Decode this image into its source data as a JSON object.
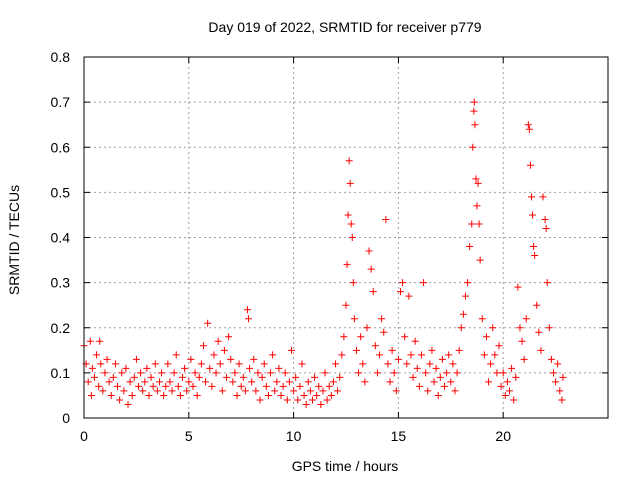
{
  "chart_data": {
    "type": "scatter",
    "title": "Day 019 of 2022, SRMTID for receiver p779",
    "xlabel": "GPS time / hours",
    "ylabel": "SRMTID / TECUs",
    "xlim": [
      0,
      25
    ],
    "ylim": [
      0,
      0.8
    ],
    "xticks": [
      0,
      5,
      10,
      15,
      20
    ],
    "xtick_labels": [
      "0",
      "5",
      "10",
      "15",
      "20"
    ],
    "yticks": [
      0,
      0.1,
      0.2,
      0.3,
      0.4,
      0.5,
      0.6,
      0.7,
      0.8
    ],
    "ytick_labels": [
      "0",
      "0.1",
      "0.2",
      "0.3",
      "0.4",
      "0.5",
      "0.6",
      "0.7",
      "0.8"
    ],
    "grid": true,
    "marker": "+",
    "color": "#ff0000",
    "series": [
      {
        "name": "SRMTID",
        "points": [
          [
            0.0,
            0.16
          ],
          [
            0.1,
            0.12
          ],
          [
            0.2,
            0.08
          ],
          [
            0.3,
            0.17
          ],
          [
            0.35,
            0.05
          ],
          [
            0.4,
            0.11
          ],
          [
            0.5,
            0.09
          ],
          [
            0.6,
            0.14
          ],
          [
            0.7,
            0.07
          ],
          [
            0.75,
            0.17
          ],
          [
            0.8,
            0.12
          ],
          [
            0.9,
            0.06
          ],
          [
            1.0,
            0.1
          ],
          [
            1.1,
            0.13
          ],
          [
            1.2,
            0.08
          ],
          [
            1.3,
            0.05
          ],
          [
            1.4,
            0.09
          ],
          [
            1.5,
            0.12
          ],
          [
            1.6,
            0.07
          ],
          [
            1.7,
            0.04
          ],
          [
            1.8,
            0.1
          ],
          [
            1.9,
            0.06
          ],
          [
            2.0,
            0.11
          ],
          [
            2.1,
            0.03
          ],
          [
            2.2,
            0.08
          ],
          [
            2.3,
            0.05
          ],
          [
            2.4,
            0.09
          ],
          [
            2.5,
            0.13
          ],
          [
            2.6,
            0.07
          ],
          [
            2.7,
            0.1
          ],
          [
            2.8,
            0.06
          ],
          [
            2.9,
            0.08
          ],
          [
            3.0,
            0.11
          ],
          [
            3.1,
            0.05
          ],
          [
            3.2,
            0.09
          ],
          [
            3.3,
            0.07
          ],
          [
            3.4,
            0.12
          ],
          [
            3.5,
            0.06
          ],
          [
            3.6,
            0.08
          ],
          [
            3.7,
            0.1
          ],
          [
            3.8,
            0.05
          ],
          [
            3.9,
            0.07
          ],
          [
            4.0,
            0.12
          ],
          [
            4.1,
            0.08
          ],
          [
            4.2,
            0.06
          ],
          [
            4.3,
            0.1
          ],
          [
            4.4,
            0.14
          ],
          [
            4.5,
            0.07
          ],
          [
            4.6,
            0.05
          ],
          [
            4.7,
            0.09
          ],
          [
            4.8,
            0.11
          ],
          [
            4.9,
            0.06
          ],
          [
            5.0,
            0.08
          ],
          [
            5.1,
            0.13
          ],
          [
            5.2,
            0.07
          ],
          [
            5.3,
            0.1
          ],
          [
            5.4,
            0.05
          ],
          [
            5.5,
            0.09
          ],
          [
            5.6,
            0.12
          ],
          [
            5.7,
            0.16
          ],
          [
            5.8,
            0.08
          ],
          [
            5.9,
            0.21
          ],
          [
            6.0,
            0.11
          ],
          [
            6.1,
            0.07
          ],
          [
            6.2,
            0.14
          ],
          [
            6.3,
            0.1
          ],
          [
            6.4,
            0.17
          ],
          [
            6.5,
            0.12
          ],
          [
            6.6,
            0.06
          ],
          [
            6.7,
            0.15
          ],
          [
            6.8,
            0.09
          ],
          [
            6.9,
            0.18
          ],
          [
            7.0,
            0.13
          ],
          [
            7.1,
            0.08
          ],
          [
            7.2,
            0.1
          ],
          [
            7.3,
            0.05
          ],
          [
            7.4,
            0.12
          ],
          [
            7.5,
            0.07
          ],
          [
            7.6,
            0.09
          ],
          [
            7.7,
            0.06
          ],
          [
            7.8,
            0.24
          ],
          [
            7.85,
            0.22
          ],
          [
            7.9,
            0.11
          ],
          [
            8.0,
            0.08
          ],
          [
            8.1,
            0.13
          ],
          [
            8.2,
            0.06
          ],
          [
            8.3,
            0.1
          ],
          [
            8.4,
            0.04
          ],
          [
            8.5,
            0.09
          ],
          [
            8.6,
            0.12
          ],
          [
            8.7,
            0.07
          ],
          [
            8.8,
            0.05
          ],
          [
            8.9,
            0.1
          ],
          [
            9.0,
            0.14
          ],
          [
            9.1,
            0.06
          ],
          [
            9.2,
            0.08
          ],
          [
            9.3,
            0.11
          ],
          [
            9.4,
            0.05
          ],
          [
            9.5,
            0.07
          ],
          [
            9.6,
            0.1
          ],
          [
            9.7,
            0.04
          ],
          [
            9.8,
            0.08
          ],
          [
            9.9,
            0.15
          ],
          [
            10.0,
            0.06
          ],
          [
            10.1,
            0.09
          ],
          [
            10.2,
            0.04
          ],
          [
            10.3,
            0.07
          ],
          [
            10.4,
            0.12
          ],
          [
            10.5,
            0.05
          ],
          [
            10.6,
            0.03
          ],
          [
            10.7,
            0.08
          ],
          [
            10.8,
            0.06
          ],
          [
            10.9,
            0.04
          ],
          [
            11.0,
            0.09
          ],
          [
            11.1,
            0.05
          ],
          [
            11.2,
            0.07
          ],
          [
            11.3,
            0.03
          ],
          [
            11.4,
            0.06
          ],
          [
            11.5,
            0.1
          ],
          [
            11.6,
            0.04
          ],
          [
            11.7,
            0.07
          ],
          [
            11.8,
            0.05
          ],
          [
            11.9,
            0.08
          ],
          [
            12.0,
            0.12
          ],
          [
            12.1,
            0.06
          ],
          [
            12.2,
            0.09
          ],
          [
            12.3,
            0.14
          ],
          [
            12.4,
            0.18
          ],
          [
            12.5,
            0.25
          ],
          [
            12.55,
            0.34
          ],
          [
            12.6,
            0.45
          ],
          [
            12.65,
            0.57
          ],
          [
            12.7,
            0.52
          ],
          [
            12.75,
            0.43
          ],
          [
            12.8,
            0.4
          ],
          [
            12.85,
            0.3
          ],
          [
            12.9,
            0.22
          ],
          [
            13.0,
            0.15
          ],
          [
            13.1,
            0.1
          ],
          [
            13.2,
            0.18
          ],
          [
            13.3,
            0.12
          ],
          [
            13.4,
            0.08
          ],
          [
            13.5,
            0.2
          ],
          [
            13.6,
            0.37
          ],
          [
            13.7,
            0.33
          ],
          [
            13.8,
            0.28
          ],
          [
            13.9,
            0.16
          ],
          [
            14.0,
            0.1
          ],
          [
            14.1,
            0.14
          ],
          [
            14.2,
            0.22
          ],
          [
            14.3,
            0.19
          ],
          [
            14.4,
            0.44
          ],
          [
            14.5,
            0.12
          ],
          [
            14.6,
            0.08
          ],
          [
            14.7,
            0.15
          ],
          [
            14.8,
            0.1
          ],
          [
            14.9,
            0.06
          ],
          [
            15.0,
            0.13
          ],
          [
            15.1,
            0.28
          ],
          [
            15.2,
            0.3
          ],
          [
            15.3,
            0.18
          ],
          [
            15.4,
            0.12
          ],
          [
            15.5,
            0.27
          ],
          [
            15.6,
            0.14
          ],
          [
            15.7,
            0.09
          ],
          [
            15.8,
            0.17
          ],
          [
            15.9,
            0.11
          ],
          [
            16.0,
            0.07
          ],
          [
            16.1,
            0.14
          ],
          [
            16.2,
            0.3
          ],
          [
            16.3,
            0.1
          ],
          [
            16.4,
            0.06
          ],
          [
            16.5,
            0.12
          ],
          [
            16.6,
            0.15
          ],
          [
            16.7,
            0.08
          ],
          [
            16.8,
            0.11
          ],
          [
            16.9,
            0.05
          ],
          [
            17.0,
            0.09
          ],
          [
            17.1,
            0.13
          ],
          [
            17.2,
            0.07
          ],
          [
            17.3,
            0.1
          ],
          [
            17.4,
            0.14
          ],
          [
            17.5,
            0.08
          ],
          [
            17.6,
            0.12
          ],
          [
            17.7,
            0.06
          ],
          [
            17.8,
            0.1
          ],
          [
            17.9,
            0.15
          ],
          [
            18.0,
            0.2
          ],
          [
            18.1,
            0.23
          ],
          [
            18.2,
            0.27
          ],
          [
            18.3,
            0.3
          ],
          [
            18.4,
            0.38
          ],
          [
            18.5,
            0.43
          ],
          [
            18.55,
            0.6
          ],
          [
            18.6,
            0.68
          ],
          [
            18.62,
            0.7
          ],
          [
            18.65,
            0.65
          ],
          [
            18.7,
            0.53
          ],
          [
            18.75,
            0.47
          ],
          [
            18.8,
            0.52
          ],
          [
            18.85,
            0.43
          ],
          [
            18.9,
            0.35
          ],
          [
            19.0,
            0.22
          ],
          [
            19.1,
            0.14
          ],
          [
            19.2,
            0.18
          ],
          [
            19.3,
            0.08
          ],
          [
            19.4,
            0.12
          ],
          [
            19.5,
            0.2
          ],
          [
            19.6,
            0.14
          ],
          [
            19.7,
            0.1
          ],
          [
            19.8,
            0.16
          ],
          [
            19.9,
            0.07
          ],
          [
            20.0,
            0.1
          ],
          [
            20.1,
            0.05
          ],
          [
            20.2,
            0.08
          ],
          [
            20.3,
            0.06
          ],
          [
            20.4,
            0.11
          ],
          [
            20.5,
            0.04
          ],
          [
            20.6,
            0.09
          ],
          [
            20.7,
            0.29
          ],
          [
            20.8,
            0.2
          ],
          [
            20.9,
            0.17
          ],
          [
            21.0,
            0.13
          ],
          [
            21.1,
            0.22
          ],
          [
            21.2,
            0.65
          ],
          [
            21.25,
            0.64
          ],
          [
            21.3,
            0.56
          ],
          [
            21.35,
            0.49
          ],
          [
            21.4,
            0.45
          ],
          [
            21.45,
            0.38
          ],
          [
            21.5,
            0.36
          ],
          [
            21.6,
            0.25
          ],
          [
            21.7,
            0.19
          ],
          [
            21.8,
            0.15
          ],
          [
            21.9,
            0.49
          ],
          [
            22.0,
            0.44
          ],
          [
            22.05,
            0.42
          ],
          [
            22.1,
            0.3
          ],
          [
            22.2,
            0.2
          ],
          [
            22.3,
            0.13
          ],
          [
            22.4,
            0.1
          ],
          [
            22.5,
            0.08
          ],
          [
            22.6,
            0.12
          ],
          [
            22.7,
            0.06
          ],
          [
            22.8,
            0.04
          ],
          [
            22.85,
            0.09
          ]
        ]
      }
    ]
  }
}
